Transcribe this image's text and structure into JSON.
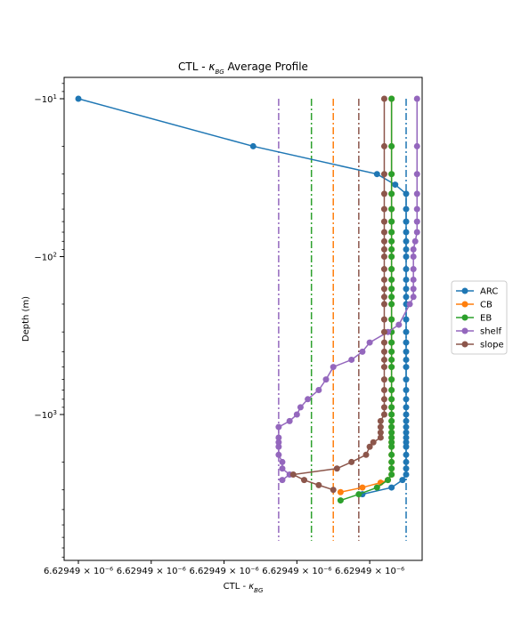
{
  "chart_data": {
    "type": "line",
    "title": "CTL - κBG Average Profile",
    "title_parts": {
      "prefix": "CTL - ",
      "symbol": "κ",
      "subscript": "BG",
      "suffix": " Average Profile"
    },
    "xlabel": "CTL - κBG",
    "xlabel_parts": {
      "prefix": "CTL - ",
      "symbol": "κ",
      "subscript": "BG"
    },
    "ylabel": "Depth (m)",
    "x_tick_labels": [
      "6.62949 × 10⁻⁶",
      "6.62949 × 10⁻⁶",
      "6.62949 × 10⁻⁶",
      "6.62949 × 10⁻⁶",
      "6.62949 × 10⁻⁶"
    ],
    "x_tick_values": [
      0.0,
      0.2,
      0.4,
      0.6,
      0.8
    ],
    "xlim": [
      -0.02,
      1.0
    ],
    "y_scale": "symlog",
    "y_ticks": [
      -10,
      -100,
      -1000
    ],
    "y_tick_labels": [
      {
        "base": "−10",
        "exp": "1"
      },
      {
        "base": "−10",
        "exp": "2"
      },
      {
        "base": "−10",
        "exp": "3"
      }
    ],
    "ylim_log10": [
      0.85,
      3.9
    ],
    "grid": false,
    "legend_position": "center-right outside",
    "series": [
      {
        "name": "ARC",
        "color": "#1f77b4",
        "points": [
          [
            0.0,
            -10
          ],
          [
            0.48,
            -20
          ],
          [
            0.82,
            -30
          ],
          [
            0.87,
            -35
          ],
          [
            0.9,
            -40
          ],
          [
            0.9,
            -50
          ],
          [
            0.9,
            -60
          ],
          [
            0.9,
            -70
          ],
          [
            0.9,
            -80
          ],
          [
            0.9,
            -90
          ],
          [
            0.9,
            -100
          ],
          [
            0.9,
            -120
          ],
          [
            0.9,
            -140
          ],
          [
            0.9,
            -160
          ],
          [
            0.9,
            -180
          ],
          [
            0.9,
            -200
          ],
          [
            0.9,
            -250
          ],
          [
            0.9,
            -300
          ],
          [
            0.9,
            -350
          ],
          [
            0.9,
            -400
          ],
          [
            0.9,
            -450
          ],
          [
            0.9,
            -500
          ],
          [
            0.9,
            -600
          ],
          [
            0.9,
            -700
          ],
          [
            0.9,
            -800
          ],
          [
            0.9,
            -900
          ],
          [
            0.9,
            -1000
          ],
          [
            0.9,
            -1100
          ],
          [
            0.9,
            -1200
          ],
          [
            0.9,
            -1300
          ],
          [
            0.9,
            -1400
          ],
          [
            0.9,
            -1500
          ],
          [
            0.9,
            -1600
          ],
          [
            0.9,
            -1800
          ],
          [
            0.9,
            -2000
          ],
          [
            0.9,
            -2200
          ],
          [
            0.9,
            -2400
          ],
          [
            0.89,
            -2600
          ],
          [
            0.86,
            -2900
          ],
          [
            0.78,
            -3200
          ]
        ],
        "vline": 0.9
      },
      {
        "name": "CB",
        "color": "#ff7f0e",
        "points": [
          [
            0.86,
            -10
          ],
          [
            0.86,
            -20
          ],
          [
            0.86,
            -30
          ],
          [
            0.86,
            -40
          ],
          [
            0.86,
            -50
          ],
          [
            0.86,
            -60
          ],
          [
            0.86,
            -70
          ],
          [
            0.86,
            -80
          ],
          [
            0.86,
            -90
          ],
          [
            0.86,
            -100
          ],
          [
            0.86,
            -120
          ],
          [
            0.86,
            -140
          ],
          [
            0.86,
            -160
          ],
          [
            0.86,
            -180
          ],
          [
            0.86,
            -200
          ],
          [
            0.86,
            -250
          ],
          [
            0.86,
            -300
          ],
          [
            0.86,
            -350
          ],
          [
            0.86,
            -400
          ],
          [
            0.86,
            -450
          ],
          [
            0.86,
            -500
          ],
          [
            0.86,
            -600
          ],
          [
            0.86,
            -700
          ],
          [
            0.86,
            -800
          ],
          [
            0.86,
            -900
          ],
          [
            0.86,
            -1000
          ],
          [
            0.86,
            -1100
          ],
          [
            0.86,
            -1200
          ],
          [
            0.86,
            -1300
          ],
          [
            0.86,
            -1400
          ],
          [
            0.86,
            -1500
          ],
          [
            0.86,
            -1600
          ],
          [
            0.86,
            -1800
          ],
          [
            0.86,
            -2000
          ],
          [
            0.86,
            -2200
          ],
          [
            0.86,
            -2400
          ],
          [
            0.85,
            -2600
          ],
          [
            0.83,
            -2700
          ],
          [
            0.78,
            -2900
          ],
          [
            0.72,
            -3100
          ]
        ],
        "vline": 0.7
      },
      {
        "name": "EB",
        "color": "#2ca02c",
        "points": [
          [
            0.86,
            -10
          ],
          [
            0.86,
            -20
          ],
          [
            0.86,
            -30
          ],
          [
            0.86,
            -40
          ],
          [
            0.86,
            -50
          ],
          [
            0.86,
            -60
          ],
          [
            0.86,
            -70
          ],
          [
            0.86,
            -80
          ],
          [
            0.86,
            -90
          ],
          [
            0.86,
            -100
          ],
          [
            0.86,
            -120
          ],
          [
            0.86,
            -140
          ],
          [
            0.86,
            -160
          ],
          [
            0.86,
            -180
          ],
          [
            0.86,
            -200
          ],
          [
            0.86,
            -250
          ],
          [
            0.86,
            -300
          ],
          [
            0.86,
            -350
          ],
          [
            0.86,
            -400
          ],
          [
            0.86,
            -450
          ],
          [
            0.86,
            -500
          ],
          [
            0.86,
            -600
          ],
          [
            0.86,
            -700
          ],
          [
            0.86,
            -800
          ],
          [
            0.86,
            -900
          ],
          [
            0.86,
            -1000
          ],
          [
            0.86,
            -1100
          ],
          [
            0.86,
            -1200
          ],
          [
            0.86,
            -1300
          ],
          [
            0.86,
            -1400
          ],
          [
            0.86,
            -1500
          ],
          [
            0.86,
            -1600
          ],
          [
            0.86,
            -1800
          ],
          [
            0.86,
            -2000
          ],
          [
            0.86,
            -2200
          ],
          [
            0.86,
            -2400
          ],
          [
            0.85,
            -2600
          ],
          [
            0.82,
            -2900
          ],
          [
            0.77,
            -3200
          ],
          [
            0.72,
            -3500
          ]
        ],
        "vline": 0.64
      },
      {
        "name": "shelf",
        "color": "#9467bd",
        "points": [
          [
            0.93,
            -10
          ],
          [
            0.93,
            -20
          ],
          [
            0.93,
            -30
          ],
          [
            0.93,
            -40
          ],
          [
            0.93,
            -50
          ],
          [
            0.93,
            -60
          ],
          [
            0.93,
            -70
          ],
          [
            0.925,
            -80
          ],
          [
            0.92,
            -90
          ],
          [
            0.92,
            -100
          ],
          [
            0.92,
            -120
          ],
          [
            0.92,
            -140
          ],
          [
            0.92,
            -160
          ],
          [
            0.92,
            -180
          ],
          [
            0.91,
            -200
          ],
          [
            0.88,
            -270
          ],
          [
            0.85,
            -300
          ],
          [
            0.8,
            -350
          ],
          [
            0.78,
            -400
          ],
          [
            0.75,
            -450
          ],
          [
            0.7,
            -500
          ],
          [
            0.68,
            -600
          ],
          [
            0.66,
            -700
          ],
          [
            0.63,
            -800
          ],
          [
            0.61,
            -900
          ],
          [
            0.6,
            -1000
          ],
          [
            0.58,
            -1100
          ],
          [
            0.55,
            -1200
          ],
          [
            0.55,
            -1400
          ],
          [
            0.55,
            -1500
          ],
          [
            0.55,
            -1600
          ],
          [
            0.55,
            -1800
          ],
          [
            0.56,
            -2000
          ],
          [
            0.56,
            -2200
          ],
          [
            0.58,
            -2400
          ],
          [
            0.56,
            -2600
          ]
        ],
        "vline": 0.55
      },
      {
        "name": "slope",
        "color": "#8c564b",
        "points": [
          [
            0.84,
            -10
          ],
          [
            0.84,
            -20
          ],
          [
            0.84,
            -30
          ],
          [
            0.84,
            -40
          ],
          [
            0.84,
            -50
          ],
          [
            0.84,
            -60
          ],
          [
            0.84,
            -70
          ],
          [
            0.84,
            -80
          ],
          [
            0.84,
            -90
          ],
          [
            0.84,
            -100
          ],
          [
            0.84,
            -120
          ],
          [
            0.84,
            -140
          ],
          [
            0.84,
            -160
          ],
          [
            0.84,
            -180
          ],
          [
            0.84,
            -200
          ],
          [
            0.84,
            -250
          ],
          [
            0.84,
            -300
          ],
          [
            0.84,
            -350
          ],
          [
            0.84,
            -400
          ],
          [
            0.84,
            -450
          ],
          [
            0.84,
            -500
          ],
          [
            0.84,
            -600
          ],
          [
            0.84,
            -700
          ],
          [
            0.84,
            -800
          ],
          [
            0.84,
            -900
          ],
          [
            0.84,
            -1000
          ],
          [
            0.83,
            -1100
          ],
          [
            0.83,
            -1200
          ],
          [
            0.83,
            -1300
          ],
          [
            0.83,
            -1400
          ],
          [
            0.81,
            -1500
          ],
          [
            0.8,
            -1600
          ],
          [
            0.79,
            -1800
          ],
          [
            0.75,
            -2000
          ],
          [
            0.71,
            -2200
          ],
          [
            0.59,
            -2400
          ],
          [
            0.62,
            -2600
          ],
          [
            0.66,
            -2800
          ],
          [
            0.7,
            -3000
          ]
        ],
        "vline": 0.77
      }
    ]
  }
}
